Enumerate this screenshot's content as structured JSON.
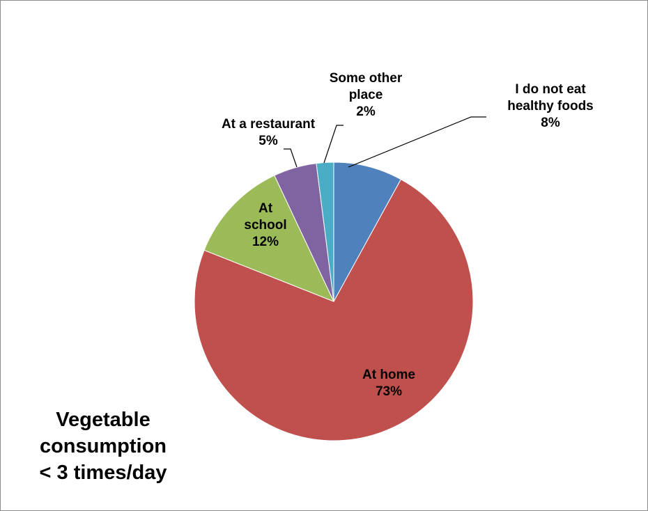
{
  "chart_data": {
    "type": "pie",
    "title_lines": [
      "Vegetable",
      "consumption",
      "< 3 times/day"
    ],
    "start_angle_deg": 0,
    "direction": "clockwise",
    "slices": [
      {
        "label_lines": [
          "I do not eat",
          "healthy foods"
        ],
        "value": 8,
        "percent_label": "8%",
        "color": "#4F81BD"
      },
      {
        "label_lines": [
          "At home"
        ],
        "value": 73,
        "percent_label": "73%",
        "color": "#C0504D"
      },
      {
        "label_lines": [
          "At",
          "school"
        ],
        "value": 12,
        "percent_label": "12%",
        "color": "#9BBB59"
      },
      {
        "label_lines": [
          "At a restaurant"
        ],
        "value": 5,
        "percent_label": "5%",
        "color": "#8064A2"
      },
      {
        "label_lines": [
          "Some other",
          "place"
        ],
        "value": 2,
        "percent_label": "2%",
        "color": "#4BACC6"
      }
    ]
  }
}
